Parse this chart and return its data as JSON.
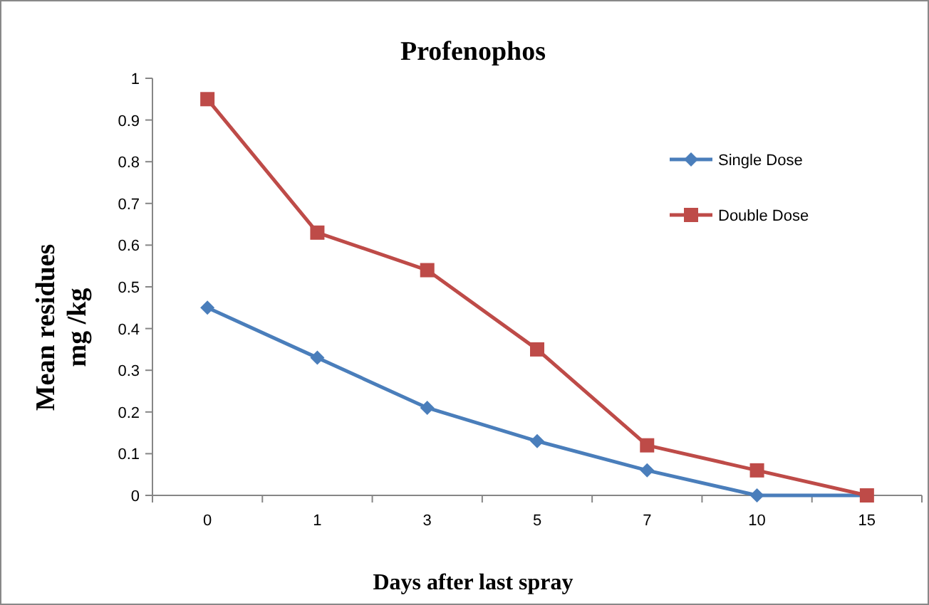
{
  "chart_data": {
    "type": "line",
    "title": "Profenophos",
    "xlabel": "Days after last spray",
    "ylabel": "Mean residues\nmg /kg",
    "categories": [
      "0",
      "1",
      "3",
      "5",
      "7",
      "10",
      "15"
    ],
    "series": [
      {
        "name": "Single Dose",
        "color": "#4a7ebb",
        "marker": "diamond",
        "values": [
          0.45,
          0.33,
          0.21,
          0.13,
          0.06,
          0,
          0
        ]
      },
      {
        "name": "Double Dose",
        "color": "#be4b48",
        "marker": "square",
        "values": [
          0.95,
          0.63,
          0.54,
          0.35,
          0.12,
          0.06,
          0
        ]
      }
    ],
    "ylim": [
      0,
      1
    ],
    "yticks": [
      0,
      0.1,
      0.2,
      0.3,
      0.4,
      0.5,
      0.6,
      0.7,
      0.8,
      0.9,
      1
    ],
    "grid": false,
    "legend": "top right"
  }
}
